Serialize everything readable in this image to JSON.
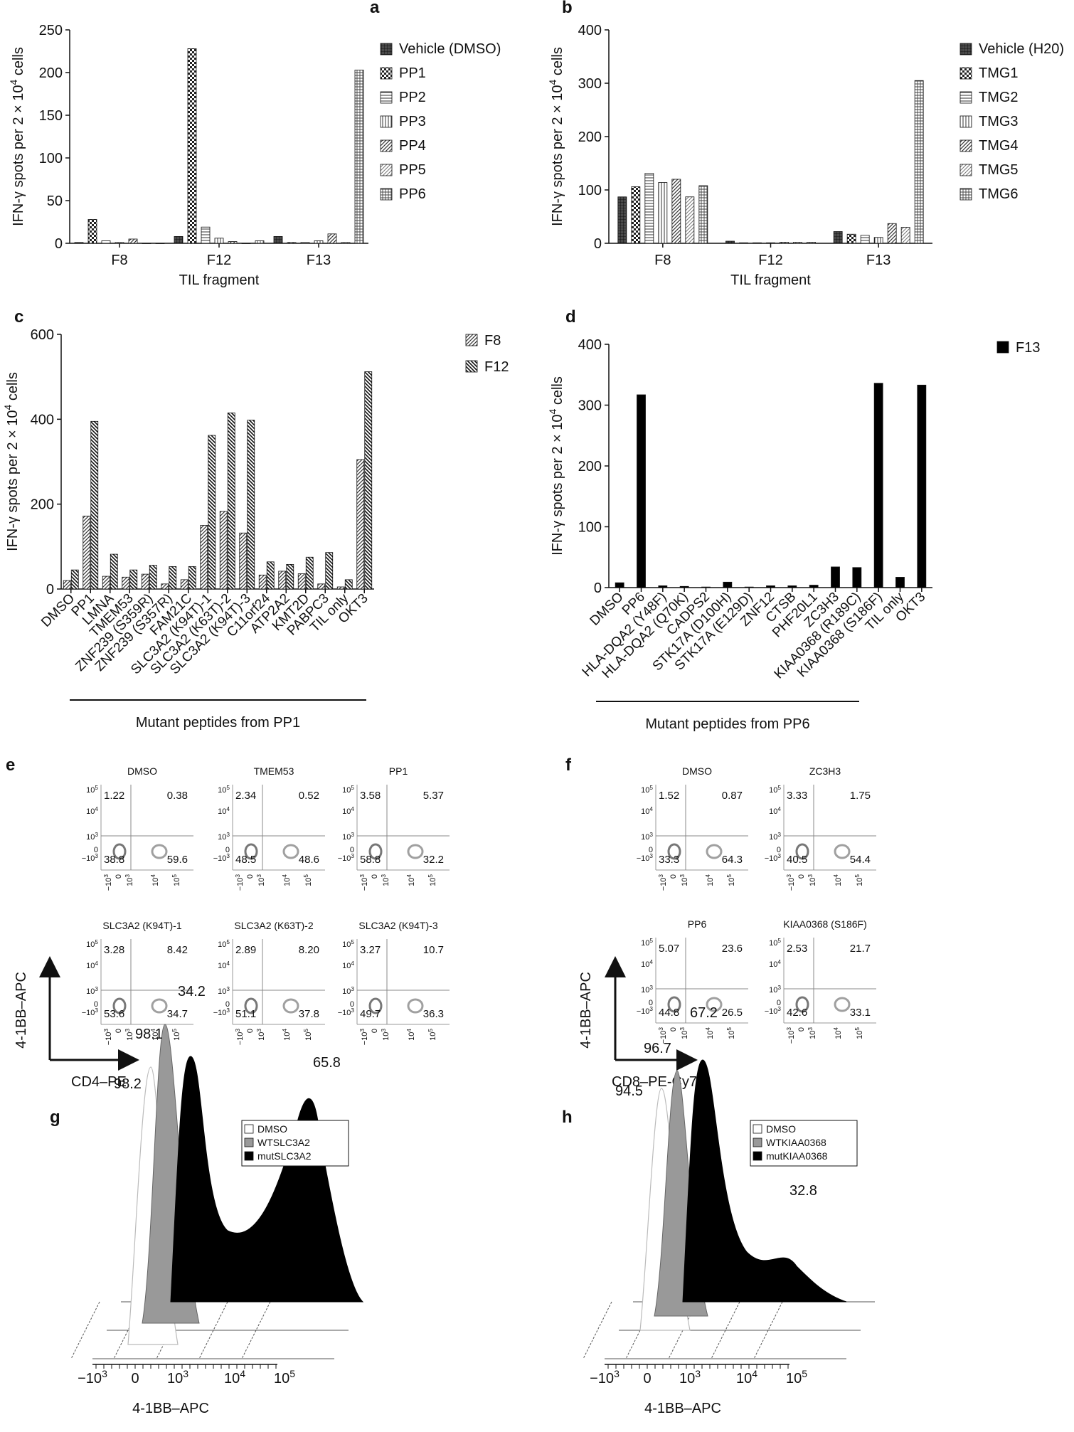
{
  "patterns": {
    "vehicle": "grid-dark",
    "p1": "checker",
    "p2": "hlines",
    "p3": "vlines",
    "p4": "diag-fwd",
    "p5": "diag-fwd-light",
    "p6": "grid"
  },
  "chart_data": [
    {
      "id": "a",
      "type": "bar",
      "letter": "a",
      "ylabel": "IFN-γ spots per 2 × 10",
      "ylabel_sup": "4",
      "ylabel_tail": " cells",
      "xlabel": "TIL fragment",
      "ylim": [
        0,
        250
      ],
      "yticks": [
        0,
        50,
        100,
        150,
        200,
        250
      ],
      "categories": [
        "F8",
        "F12",
        "F13"
      ],
      "series": [
        {
          "name": "Vehicle (DMSO)",
          "pattern": "vehicle",
          "values": [
            1,
            8,
            8
          ]
        },
        {
          "name": "PP1",
          "pattern": "p1",
          "values": [
            28,
            228,
            1
          ]
        },
        {
          "name": "PP2",
          "pattern": "p2",
          "values": [
            3,
            19,
            1
          ]
        },
        {
          "name": "PP3",
          "pattern": "p3",
          "values": [
            1,
            6,
            3
          ]
        },
        {
          "name": "PP4",
          "pattern": "p4",
          "values": [
            5,
            2,
            11
          ]
        },
        {
          "name": "PP5",
          "pattern": "p5",
          "values": [
            0,
            0,
            1
          ]
        },
        {
          "name": "PP6",
          "pattern": "p6",
          "values": [
            0,
            3,
            203
          ]
        }
      ],
      "legend": "right"
    },
    {
      "id": "b",
      "type": "bar",
      "letter": "b",
      "ylabel": "IFN-γ spots per 2 × 10",
      "ylabel_sup": "4",
      "ylabel_tail": " cells",
      "xlabel": "TIL fragment",
      "ylim": [
        0,
        400
      ],
      "yticks": [
        0,
        100,
        200,
        300,
        400
      ],
      "categories": [
        "F8",
        "F12",
        "F13"
      ],
      "series": [
        {
          "name": "Vehicle (H20)",
          "pattern": "vehicle",
          "values": [
            87,
            4,
            22
          ]
        },
        {
          "name": "TMG1",
          "pattern": "p1",
          "values": [
            106,
            1,
            17
          ]
        },
        {
          "name": "TMG2",
          "pattern": "p2",
          "values": [
            131,
            1,
            15
          ]
        },
        {
          "name": "TMG3",
          "pattern": "p3",
          "values": [
            114,
            1,
            11
          ]
        },
        {
          "name": "TMG4",
          "pattern": "p4",
          "values": [
            120,
            2,
            37
          ]
        },
        {
          "name": "TMG5",
          "pattern": "p5",
          "values": [
            87,
            2,
            30
          ]
        },
        {
          "name": "TMG6",
          "pattern": "p6",
          "values": [
            108,
            2,
            305
          ]
        }
      ],
      "legend": "right"
    },
    {
      "id": "c",
      "type": "bar",
      "letter": "c",
      "ylabel": "IFN-γ spots per 2 × 10",
      "ylabel_sup": "4",
      "ylabel_tail": " cells",
      "ylim": [
        0,
        600
      ],
      "yticks": [
        0,
        200,
        400,
        600
      ],
      "categories": [
        "DMSO",
        "PP1",
        "LMNA",
        "TMEM53",
        "ZNF239 (S359R)",
        "ZNF239 (S357R)",
        "FAM21C",
        "SLC3A2 (K94T)-1",
        "SLC3A2 (K63T)-2",
        "SLC3A2 (K94T)-3",
        "C11orf24",
        "ATP2A2",
        "KMT2D",
        "PABPC3",
        "TIL only",
        "OKT3"
      ],
      "series": [
        {
          "name": "F8",
          "pattern": "p4",
          "values": [
            20,
            172,
            30,
            28,
            35,
            12,
            22,
            150,
            183,
            132,
            33,
            42,
            36,
            12,
            5,
            305
          ]
        },
        {
          "name": "F12",
          "pattern": "diag-back",
          "values": [
            45,
            395,
            82,
            45,
            56,
            53,
            53,
            362,
            415,
            398,
            64,
            58,
            75,
            86,
            22,
            512
          ]
        }
      ],
      "bracket_label": "Mutant peptides from PP1",
      "legend": "top-right"
    },
    {
      "id": "d",
      "type": "bar",
      "letter": "d",
      "ylabel": "IFN-γ spots per 2 × 10",
      "ylabel_sup": "4",
      "ylabel_tail": " cells",
      "ylim": [
        0,
        400
      ],
      "yticks": [
        0,
        100,
        200,
        300,
        400
      ],
      "categories": [
        "DMSO",
        "PP6",
        "HLA-DQA2 (Y48F)",
        "HLA-DQA2 (Q70K)",
        "CADPS2",
        "STK17A (D100H)",
        "STK17A (E129D)",
        "ZNF12",
        "CTSB",
        "PHF20L1",
        "ZC3H3",
        "KIAA0368 (R189C)",
        "KIAA0368 (S186F)",
        "TIL only",
        "OKT3"
      ],
      "series": [
        {
          "name": "F13",
          "pattern": "solid",
          "values": [
            8,
            317,
            3,
            2,
            1,
            9,
            1,
            3,
            3,
            4,
            34,
            33,
            336,
            17,
            333
          ]
        }
      ],
      "bracket_label": "Mutant peptides from PP6",
      "legend": "top-right"
    }
  ],
  "panel_e": {
    "letter": "e",
    "x_axis": "CD4–PE",
    "y_axis": "4-1BB–APC",
    "plots": [
      {
        "title": "DMSO",
        "ul": "1.22",
        "ur": "0.38",
        "ll": "38.8",
        "lr": "59.6"
      },
      {
        "title": "TMEM53",
        "ul": "2.34",
        "ur": "0.52",
        "ll": "48.5",
        "lr": "48.6"
      },
      {
        "title": "PP1",
        "ul": "3.58",
        "ur": "5.37",
        "ll": "58.8",
        "lr": "32.2"
      },
      {
        "title": "SLC3A2 (K94T)-1",
        "ul": "3.28",
        "ur": "8.42",
        "ll": "53.6",
        "lr": "34.7"
      },
      {
        "title": "SLC3A2 (K63T)-2",
        "ul": "2.89",
        "ur": "8.20",
        "ll": "51.1",
        "lr": "37.8"
      },
      {
        "title": "SLC3A2 (K94T)-3",
        "ul": "3.27",
        "ur": "10.7",
        "ll": "49.7",
        "lr": "36.3"
      }
    ]
  },
  "panel_f": {
    "letter": "f",
    "x_axis": "CD8–PE-Cy7",
    "y_axis": "4-1BB–APC",
    "plots": [
      {
        "title": "DMSO",
        "ul": "1.52",
        "ur": "0.87",
        "ll": "33.3",
        "lr": "64.3"
      },
      {
        "title": "ZC3H3",
        "ul": "3.33",
        "ur": "1.75",
        "ll": "40.5",
        "lr": "54.4"
      },
      {
        "title": "PP6",
        "ul": "5.07",
        "ur": "23.6",
        "ll": "44.8",
        "lr": "26.5"
      },
      {
        "title": "KIAA0368 (S186F)",
        "ul": "2.53",
        "ur": "21.7",
        "ll": "42.6",
        "lr": "33.1"
      }
    ]
  },
  "panel_g": {
    "letter": "g",
    "xlabel": "4-1BB–APC",
    "legend": [
      "DMSO",
      "WTSLC3A2",
      "mutSLC3A2"
    ],
    "labels": [
      "98.2",
      "98.1",
      "34.2",
      "65.8"
    ]
  },
  "panel_h": {
    "letter": "h",
    "xlabel": "4-1BB–APC",
    "legend": [
      "DMSO",
      "WTKIAA0368",
      "mutKIAA0368"
    ],
    "labels": [
      "94.5",
      "96.7",
      "67.2",
      "32.8"
    ]
  },
  "common": {
    "axis_ticks": [
      "−10",
      "0",
      "10",
      "10",
      "10"
    ],
    "axis_exps": [
      "3",
      "",
      "3",
      "4",
      "5"
    ],
    "flow_y_ticks": [
      {
        "b": "10",
        "e": "5"
      },
      {
        "b": "10",
        "e": "4"
      },
      {
        "b": "10",
        "e": "3"
      },
      {
        "b": "0",
        "e": ""
      },
      {
        "b": "−10",
        "e": "3"
      }
    ]
  }
}
